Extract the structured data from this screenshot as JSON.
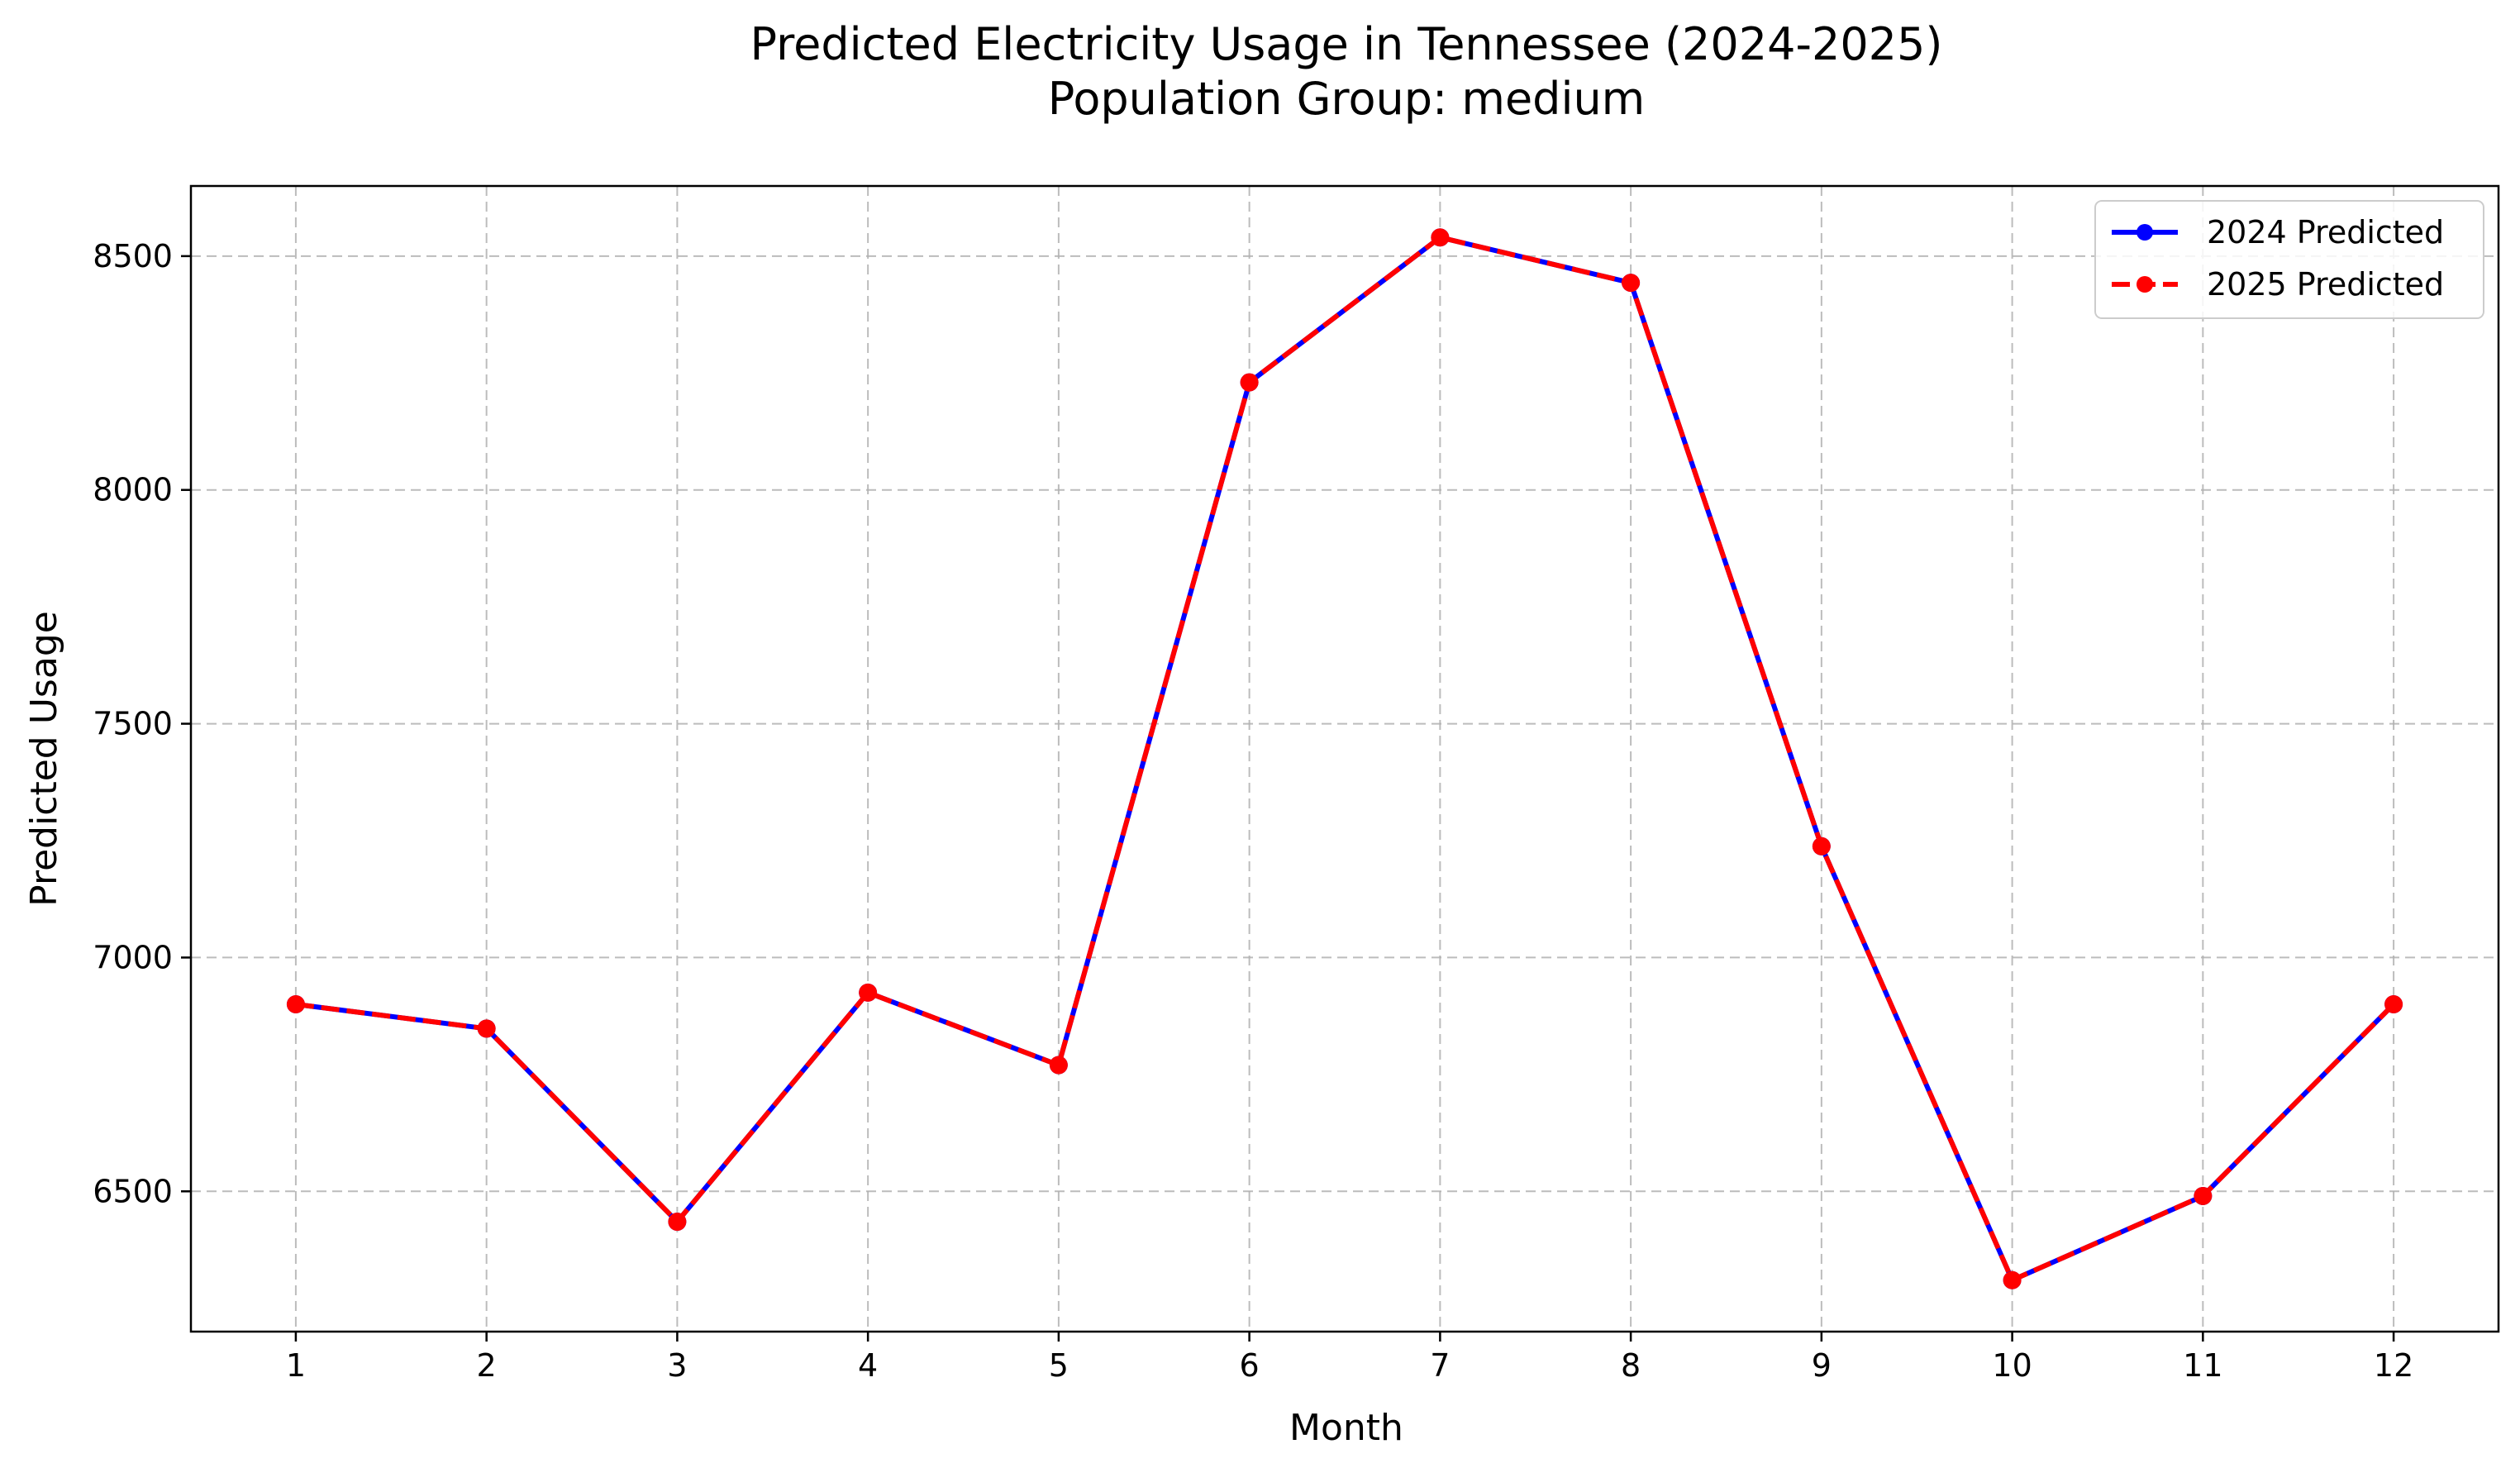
{
  "chart_data": {
    "type": "line",
    "title": "Predicted Electricity Usage in Tennessee (2024-2025)",
    "subtitle": "Population Group: medium",
    "xlabel": "Month",
    "ylabel": "Predicted Usage",
    "x": [
      1,
      2,
      3,
      4,
      5,
      6,
      7,
      8,
      9,
      10,
      11,
      12
    ],
    "x_ticks": [
      "1",
      "2",
      "3",
      "4",
      "5",
      "6",
      "7",
      "8",
      "9",
      "10",
      "11",
      "12"
    ],
    "xlim": [
      0.45,
      12.55
    ],
    "ylim": [
      6200,
      8650
    ],
    "y_ticks": [
      6500,
      7000,
      7500,
      8000,
      8500
    ],
    "y_tick_labels": [
      "6500",
      "7000",
      "7500",
      "8000",
      "8500"
    ],
    "grid": true,
    "legend_position": "top-right",
    "series": [
      {
        "name": "2024 Predicted",
        "color": "#0000ff",
        "line_style": "solid",
        "marker": "circle",
        "values": [
          6900,
          6848,
          6435,
          6925,
          6770,
          8230,
          8540,
          8443,
          7238,
          6310,
          6490,
          6900
        ]
      },
      {
        "name": "2025 Predicted",
        "color": "#ff0000",
        "line_style": "dashed",
        "marker": "circle",
        "values": [
          6900,
          6848,
          6435,
          6925,
          6770,
          8230,
          8540,
          8443,
          7238,
          6310,
          6490,
          6900
        ]
      }
    ]
  }
}
